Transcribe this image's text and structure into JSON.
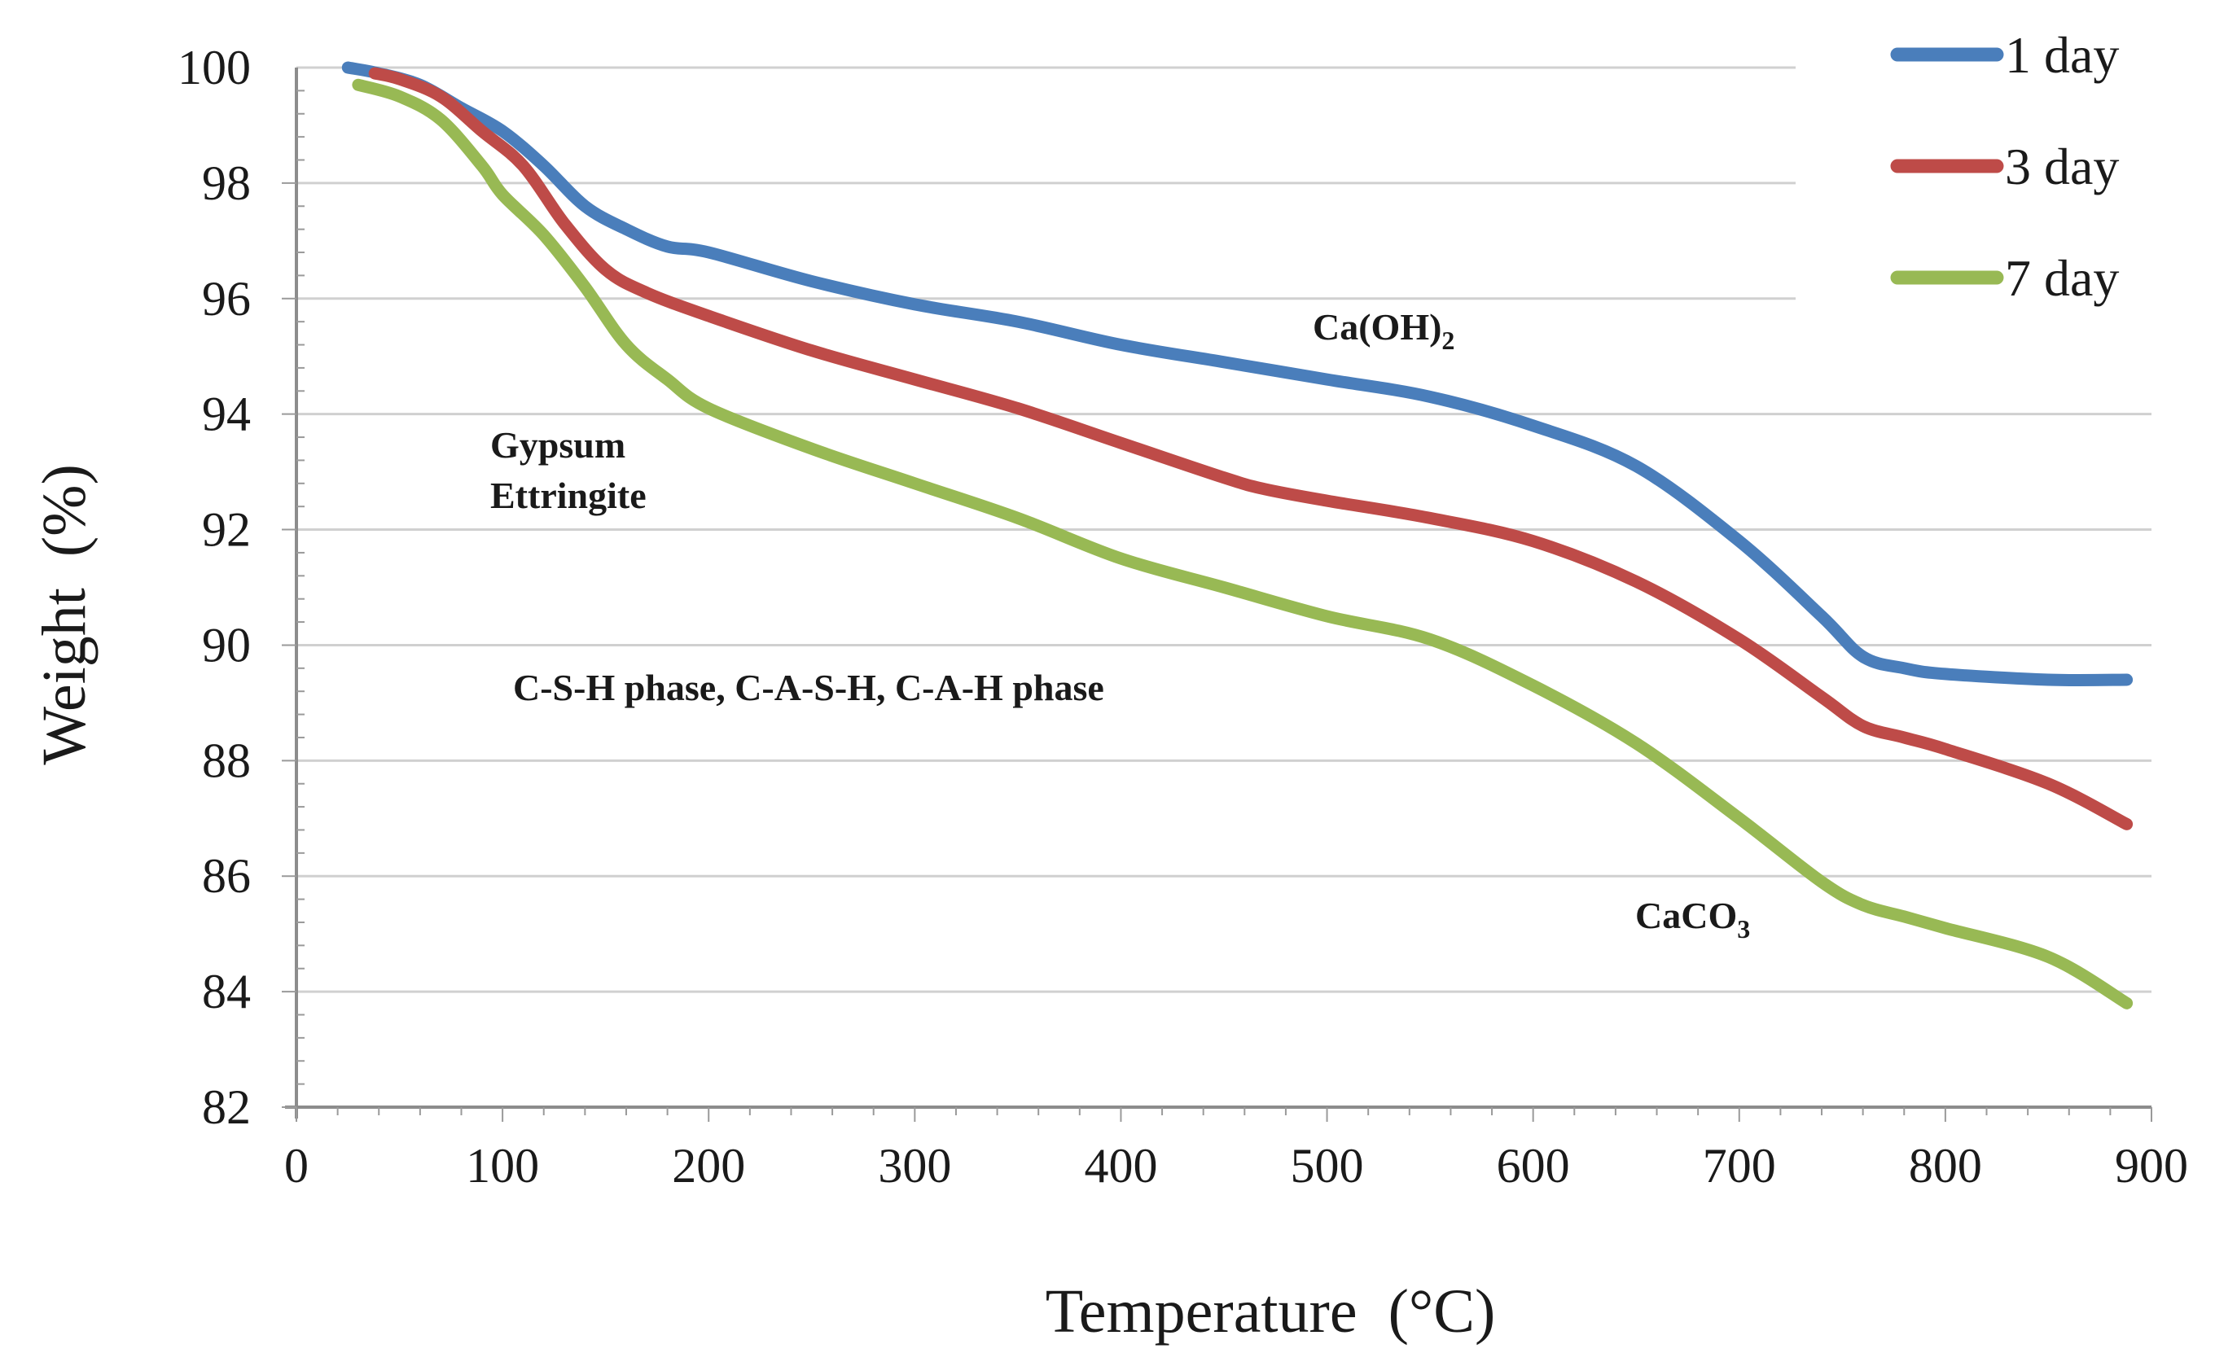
{
  "chart_data": {
    "type": "line",
    "title": "",
    "xlabel": "Temperature  (°C)",
    "ylabel": "Weight  (%)",
    "xlim": [
      0,
      900
    ],
    "ylim": [
      82,
      100
    ],
    "x_ticks": [
      "0",
      "100",
      "200",
      "300",
      "400",
      "500",
      "600",
      "700",
      "800",
      "900"
    ],
    "y_ticks": [
      "82",
      "84",
      "86",
      "88",
      "90",
      "92",
      "94",
      "96",
      "98",
      "100"
    ],
    "grid": "horizontal",
    "legend_position": "top-right",
    "series": [
      {
        "name": "1 day",
        "color": "#4a7ebb",
        "x": [
          25,
          40,
          60,
          80,
          100,
          120,
          140,
          160,
          180,
          200,
          250,
          300,
          350,
          400,
          450,
          500,
          550,
          600,
          650,
          700,
          740,
          760,
          780,
          800,
          850,
          888
        ],
        "y": [
          100,
          99.9,
          99.7,
          99.3,
          98.9,
          98.3,
          97.6,
          97.2,
          96.9,
          96.8,
          96.3,
          95.9,
          95.6,
          95.2,
          94.9,
          94.6,
          94.3,
          93.8,
          93.1,
          91.8,
          90.5,
          89.8,
          89.6,
          89.5,
          89.4,
          89.4
        ]
      },
      {
        "name": "3 day",
        "color": "#be4b48",
        "x": [
          38,
          50,
          70,
          90,
          110,
          130,
          150,
          170,
          200,
          250,
          300,
          350,
          400,
          450,
          470,
          500,
          550,
          600,
          650,
          700,
          740,
          760,
          780,
          800,
          850,
          888
        ],
        "y": [
          99.9,
          99.8,
          99.5,
          98.9,
          98.3,
          97.3,
          96.5,
          96.1,
          95.7,
          95.1,
          94.6,
          94.1,
          93.5,
          92.9,
          92.7,
          92.5,
          92.2,
          91.8,
          91.1,
          90.1,
          89.1,
          88.6,
          88.4,
          88.2,
          87.6,
          86.9
        ]
      },
      {
        "name": "7 day",
        "color": "#98b954",
        "x": [
          30,
          50,
          70,
          90,
          100,
          120,
          140,
          160,
          180,
          200,
          250,
          300,
          350,
          400,
          450,
          500,
          550,
          600,
          650,
          700,
          740,
          760,
          780,
          800,
          850,
          888
        ],
        "y": [
          99.7,
          99.5,
          99.1,
          98.3,
          97.8,
          97.1,
          96.2,
          95.2,
          94.6,
          94.1,
          93.4,
          92.8,
          92.2,
          91.5,
          91.0,
          90.5,
          90.1,
          89.3,
          88.3,
          87.0,
          85.9,
          85.5,
          85.3,
          85.1,
          84.6,
          83.8
        ]
      }
    ],
    "annotations": [
      {
        "id": "caoh2",
        "text": "Ca(OH)",
        "sub": "2"
      },
      {
        "id": "gypsum",
        "text": "Gypsum"
      },
      {
        "id": "ettringite",
        "text": "Ettringite"
      },
      {
        "id": "csh",
        "text": "C-S-H phase, C-A-S-H, C-A-H phase"
      },
      {
        "id": "caco3",
        "text": "CaCO",
        "sub": "3"
      }
    ]
  }
}
